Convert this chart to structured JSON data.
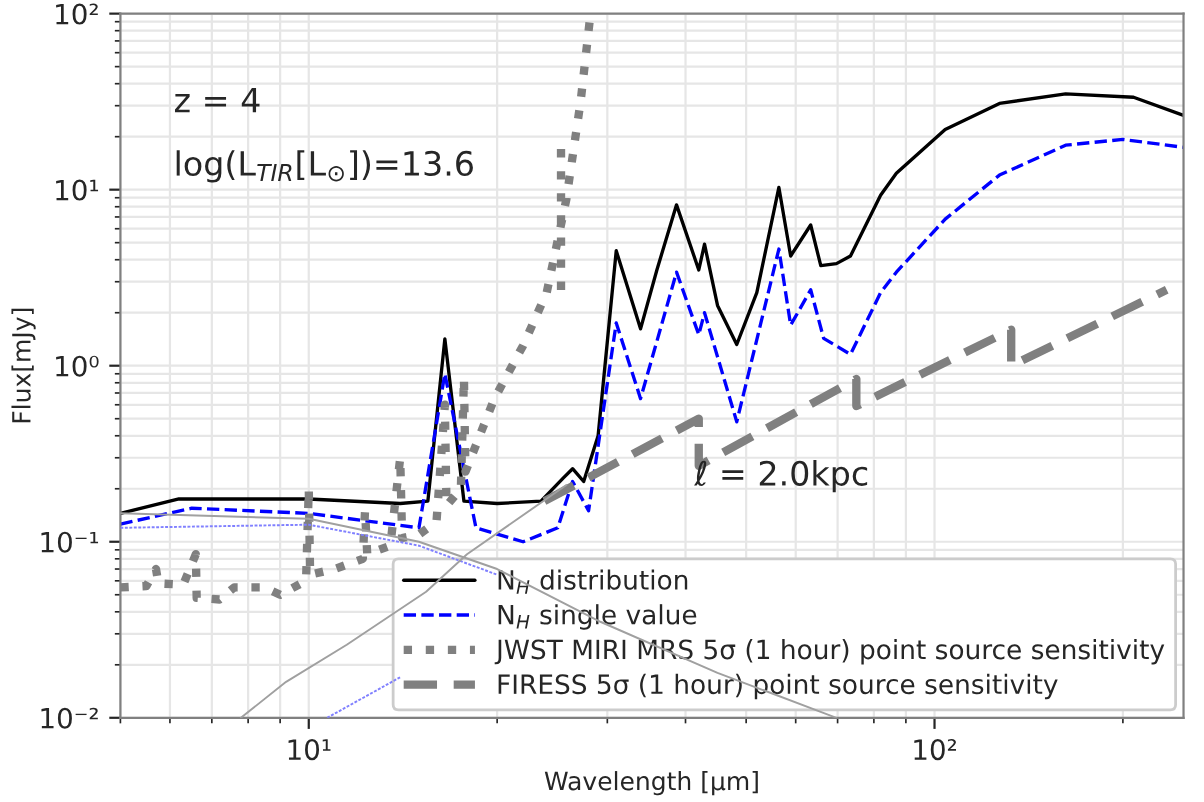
{
  "chart_data": {
    "type": "line",
    "xlabel": "Wavelength [μm]",
    "ylabel": "Flux[mJy]",
    "log": "xy",
    "grid": true,
    "legend": "bottom right",
    "xlim": [
      5,
      250
    ],
    "ylim": [
      0.01,
      100
    ],
    "xticks": [
      {
        "value": 10,
        "label": "10¹"
      },
      {
        "value": 100,
        "label": "10²"
      }
    ],
    "yticks": [
      {
        "value": 0.01,
        "label": "10⁻²"
      },
      {
        "value": 0.1,
        "label": "10⁻¹"
      },
      {
        "value": 1,
        "label": "10⁰"
      },
      {
        "value": 10,
        "label": "10¹"
      },
      {
        "value": 100,
        "label": "10²"
      }
    ],
    "annotations": [
      "z = 4",
      "log(L$_{TIR}$[L$_{⊙}$])=13.6",
      "ℓ = 2.0kpc"
    ],
    "series": [
      {
        "name": "N$_{H}$ distribution",
        "color": "#000000",
        "line_style": "solid",
        "x": [
          5,
          6.2,
          10,
          14,
          15.5,
          16.5,
          17.7,
          20,
          23.5,
          25.5,
          26.4,
          27.5,
          29,
          31,
          33.9,
          36,
          38.7,
          42,
          42.9,
          45,
          48.3,
          52,
          56.4,
          58.9,
          63.4,
          65.8,
          69.7,
          73.4,
          82,
          86.9,
          104,
          127,
          162,
          208,
          250
        ],
        "values": [
          0.145,
          0.175,
          0.175,
          0.165,
          0.17,
          1.42,
          0.17,
          0.165,
          0.17,
          0.23,
          0.26,
          0.22,
          0.4,
          4.5,
          1.62,
          3.5,
          8.2,
          3.5,
          4.9,
          2.2,
          1.32,
          2.6,
          10.3,
          4.2,
          6.3,
          3.7,
          3.8,
          4.2,
          9.3,
          12.4,
          22,
          30.9,
          35,
          33.5,
          26.4
        ]
      },
      {
        "name": "N$_{H}$ single value",
        "color": "#0000ff",
        "line_style": "dashed",
        "x": [
          5,
          6.5,
          10,
          15,
          16.5,
          18.5,
          22,
          25,
          26.4,
          28,
          31,
          33.9,
          38.7,
          42,
          42.9,
          48.3,
          56.4,
          58.9,
          63.4,
          66.5,
          73.4,
          82,
          86.9,
          104,
          127,
          162,
          200,
          250
        ],
        "values": [
          0.126,
          0.155,
          0.145,
          0.12,
          0.9,
          0.12,
          0.1,
          0.12,
          0.22,
          0.15,
          1.75,
          0.65,
          3.4,
          1.5,
          2.0,
          0.48,
          4.6,
          1.7,
          2.7,
          1.43,
          1.16,
          2.6,
          3.4,
          6.8,
          12.1,
          17.9,
          19.3,
          17.4
        ]
      },
      {
        "name": "JWST MIRI MRS 5σ (1 hour) point source sensitivity",
        "color": "#808080",
        "line_style": "dotted",
        "x": [
          5,
          5.5,
          5.7,
          5.75,
          6.3,
          6.6,
          6.62,
          7.2,
          7.6,
          8.5,
          9,
          9.9,
          10,
          10.05,
          11,
          12.2,
          12.3,
          12.4,
          13.5,
          14,
          14.1,
          15,
          16,
          16.5,
          16.6,
          17.5,
          17.7,
          17.8,
          19,
          19.8,
          22,
          24,
          25.8,
          27.2,
          28.2,
          null,
          25.3,
          25.3
        ],
        "values": [
          0.055,
          0.056,
          0.07,
          0.058,
          0.057,
          0.085,
          0.048,
          0.047,
          0.055,
          0.055,
          0.05,
          0.06,
          0.2,
          0.065,
          0.07,
          0.08,
          0.15,
          0.085,
          0.095,
          0.3,
          0.105,
          0.11,
          0.13,
          0.6,
          0.16,
          0.2,
          0.85,
          0.25,
          0.45,
          0.65,
          1.3,
          2.6,
          8.8,
          32,
          100,
          null,
          17,
          2.6
        ]
      },
      {
        "name": "FIRESS 5σ (1 hour) point source sensitivity",
        "color": "#808080",
        "line_style": "dashed",
        "x": [
          23.8,
          42,
          42,
          75,
          75,
          132.6,
          132.6,
          235
        ],
        "values": [
          0.17,
          0.5,
          0.27,
          0.84,
          0.59,
          1.6,
          1.0,
          2.7
        ]
      },
      {
        "color": "#a0a0a0",
        "line_style": "solid",
        "x": [
          5,
          10,
          15,
          20,
          29.3,
          45,
          69.7
        ],
        "values": [
          0.145,
          0.135,
          0.1,
          0.07,
          0.035,
          0.018,
          0.01
        ]
      },
      {
        "color": "#8080ff",
        "line_style": "dotted",
        "x": [
          5,
          10,
          15,
          20
        ],
        "values": [
          0.12,
          0.125,
          0.095,
          0.065
        ]
      },
      {
        "color": "#a0a0a0",
        "line_style": "solid",
        "x": [
          7.79,
          9.2,
          11.5,
          15.4,
          17.9,
          25.8
        ],
        "values": [
          0.01,
          0.016,
          0.026,
          0.052,
          0.085,
          0.21
        ]
      },
      {
        "color": "#8080ff",
        "line_style": "dotted",
        "x": [
          10.7,
          14
        ],
        "values": [
          0.01,
          0.017
        ]
      }
    ]
  }
}
